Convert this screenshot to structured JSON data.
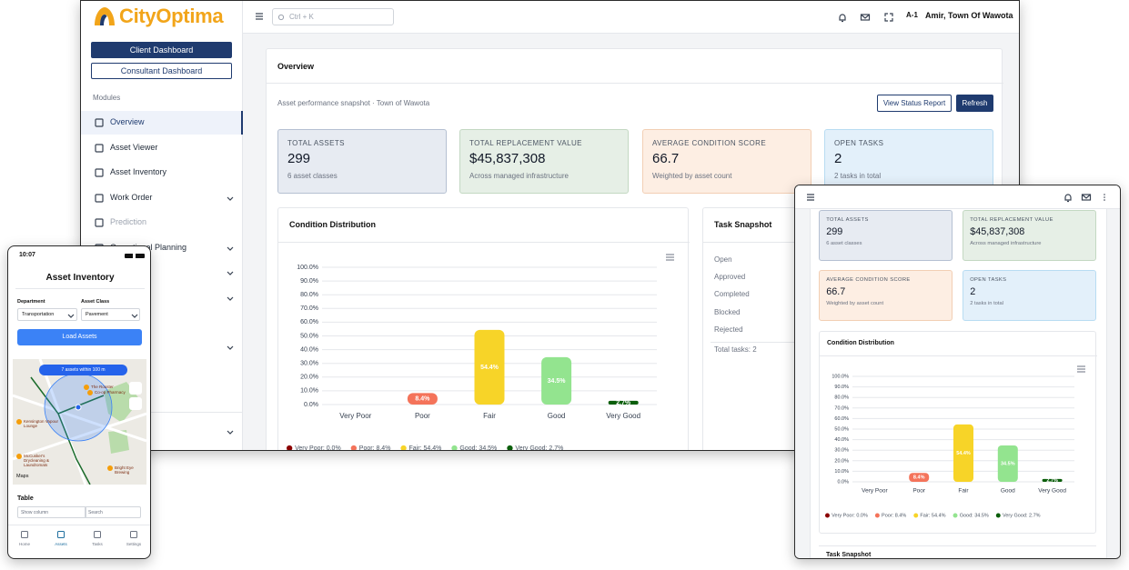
{
  "brand": "CityOptima",
  "sidebar": {
    "buttons": [
      "Client Dashboard",
      "Consultant Dashboard"
    ],
    "section": "Modules",
    "items": [
      "Overview",
      "Asset Viewer",
      "Asset Inventory",
      "Work Order",
      "Prediction",
      "Operational Planning"
    ]
  },
  "topbar": {
    "search": "Ctrl + K",
    "user_badge": "A-1",
    "user": "Amir, Town Of Wawota"
  },
  "overview": {
    "title": "Overview",
    "subtitle": "Asset performance snapshot · Town of Wawota",
    "buttons": [
      "View Status Report",
      "Refresh"
    ]
  },
  "kpis": [
    {
      "label": "TOTAL ASSETS",
      "value": "299",
      "note": "6 asset classes"
    },
    {
      "label": "TOTAL REPLACEMENT VALUE",
      "value": "$45,837,308",
      "note": "Across managed infrastructure"
    },
    {
      "label": "AVERAGE CONDITION SCORE",
      "value": "66.7",
      "note": "Weighted by asset count"
    },
    {
      "label": "OPEN TASKS",
      "value": "2",
      "note": "2 tasks in total"
    }
  ],
  "chart_data": {
    "type": "bar",
    "title": "Condition Distribution",
    "categories": [
      "Very Poor",
      "Poor",
      "Fair",
      "Good",
      "Very Good"
    ],
    "values": [
      0.0,
      8.4,
      54.4,
      34.5,
      2.7
    ],
    "value_labels": [
      null,
      "8.4%",
      "54.4%",
      "34.5%",
      "2.7%"
    ],
    "colors": [
      "#8b0000",
      "#f4735a",
      "#f7d428",
      "#93e48f",
      "#0b5e0b"
    ],
    "legend": [
      "Very Poor: 0.0%",
      "Poor: 8.4%",
      "Fair: 54.4%",
      "Good: 34.5%",
      "Very Good: 2.7%"
    ],
    "ylim": [
      0,
      100
    ],
    "yticks": [
      {
        "value": 0,
        "label": "0.0%"
      },
      {
        "value": 10,
        "label": "10.0%"
      },
      {
        "value": 20,
        "label": "20.0%"
      },
      {
        "value": 30,
        "label": "30.0%"
      },
      {
        "value": 40,
        "label": "40.0%"
      },
      {
        "value": 50,
        "label": "50.0%"
      },
      {
        "value": 60,
        "label": "60.0%"
      },
      {
        "value": 70,
        "label": "70.0%"
      },
      {
        "value": 80,
        "label": "80.0%"
      },
      {
        "value": 90,
        "label": "90.0%"
      },
      {
        "value": 100,
        "label": "100.0%"
      }
    ],
    "grid": true
  },
  "tasks": {
    "title": "Task Snapshot",
    "rows": [
      "Open",
      "Approved",
      "Completed",
      "Blocked",
      "Rejected"
    ],
    "total": "Total tasks: 2"
  },
  "phone": {
    "time": "10:07",
    "title": "Asset Inventory",
    "filters": [
      {
        "label": "Department",
        "value": "Transportation"
      },
      {
        "label": "Asset Class",
        "value": "Pavement"
      }
    ],
    "button": "Load Assets",
    "map_chip": "7 assets within 100 m",
    "map_places": [
      "The Rooster",
      "Kensington Vapour Lounge",
      "Co-op Pharmacy",
      "McCusker's Drycleaning & Laundromats",
      "Bright Eye Brewing"
    ],
    "map_brand": "Maps",
    "section": "Table",
    "controls": [
      "Show column",
      "Search"
    ],
    "nav": [
      "Home",
      "Assets",
      "Tasks",
      "Settings"
    ]
  }
}
